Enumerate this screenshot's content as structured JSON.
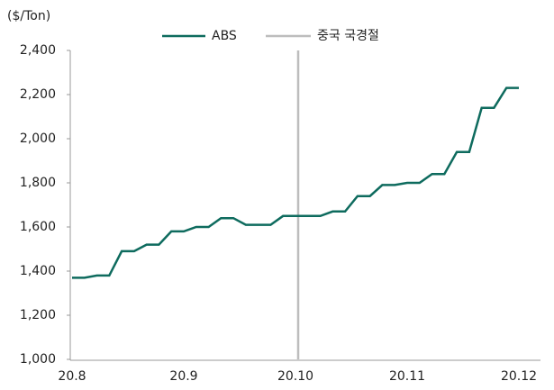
{
  "chart_data": {
    "type": "line",
    "y_label": "($/Ton)",
    "categories": [
      "20.8",
      null,
      null,
      null,
      null,
      null,
      null,
      null,
      null,
      "20.9",
      null,
      null,
      null,
      null,
      null,
      null,
      null,
      null,
      "20.10",
      null,
      null,
      null,
      null,
      null,
      null,
      null,
      null,
      "20.11",
      null,
      null,
      null,
      null,
      null,
      null,
      null,
      null,
      "20.12"
    ],
    "series": [
      {
        "name": "ABS",
        "color": "#0e6b5e",
        "values": [
          1370,
          1370,
          1380,
          1380,
          1490,
          1490,
          1520,
          1520,
          1580,
          1580,
          1600,
          1600,
          1640,
          1640,
          1610,
          1610,
          1610,
          1650,
          1650,
          1650,
          1650,
          1670,
          1670,
          1740,
          1740,
          1790,
          1790,
          1800,
          1800,
          1840,
          1840,
          1940,
          1940,
          2140,
          2140,
          2230,
          2230
        ]
      }
    ],
    "annotations": [
      {
        "label": "중국 국경절",
        "x": "20.10",
        "color": "#bdbdbd"
      }
    ],
    "ylim": [
      1000,
      2400
    ],
    "yticks": [
      {
        "value": 1000,
        "label": "1,000"
      },
      {
        "value": 1200,
        "label": "1,200"
      },
      {
        "value": 1400,
        "label": "1,400"
      },
      {
        "value": 1600,
        "label": "1,600"
      },
      {
        "value": 1800,
        "label": "1,800"
      },
      {
        "value": 2000,
        "label": "2,000"
      },
      {
        "value": 2200,
        "label": "2,200"
      },
      {
        "value": 2400,
        "label": "2,400"
      }
    ],
    "grid": false
  }
}
